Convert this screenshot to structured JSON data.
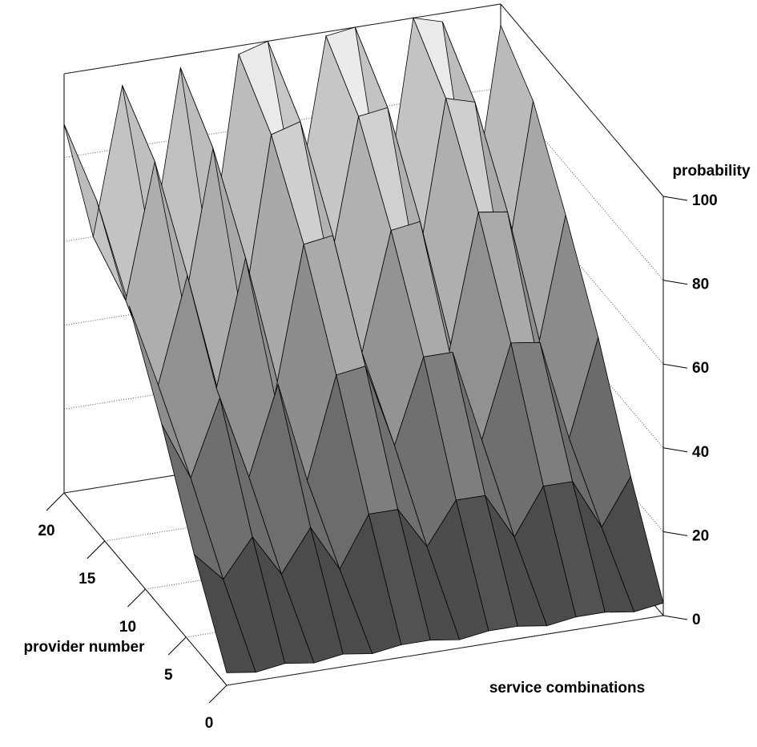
{
  "chart_data": {
    "type": "surface",
    "z_label": "probability",
    "y_label": "provider number",
    "x_label": "service combinations",
    "y": [
      0,
      4,
      8,
      12,
      16,
      20
    ],
    "z": [
      [
        3,
        2,
        3,
        2,
        3,
        2,
        3,
        3,
        2,
        3,
        3,
        2,
        3,
        3,
        2,
        3
      ],
      [
        22,
        15,
        24,
        14,
        24,
        13,
        25,
        25,
        15,
        25,
        25,
        14,
        25,
        25,
        13,
        24
      ],
      [
        44,
        30,
        48,
        28,
        49,
        25,
        49,
        50,
        30,
        50,
        50,
        28,
        50,
        49,
        25,
        48
      ],
      [
        63,
        43,
        68,
        40,
        70,
        36,
        71,
        72,
        43,
        71,
        72,
        40,
        72,
        71,
        36,
        68
      ],
      [
        79,
        54,
        86,
        50,
        87,
        45,
        88,
        90,
        54,
        89,
        90,
        50,
        90,
        88,
        45,
        86
      ],
      [
        88,
        60,
        95,
        55,
        97,
        50,
        98,
        100,
        60,
        99,
        100,
        55,
        100,
        98,
        50,
        95
      ]
    ],
    "ylim": [
      0,
      20
    ],
    "yticks": [
      0,
      5,
      10,
      15,
      20
    ],
    "zlim": [
      0,
      100
    ],
    "zticks": [
      0,
      20,
      40,
      60,
      80,
      100
    ],
    "grid": true
  }
}
